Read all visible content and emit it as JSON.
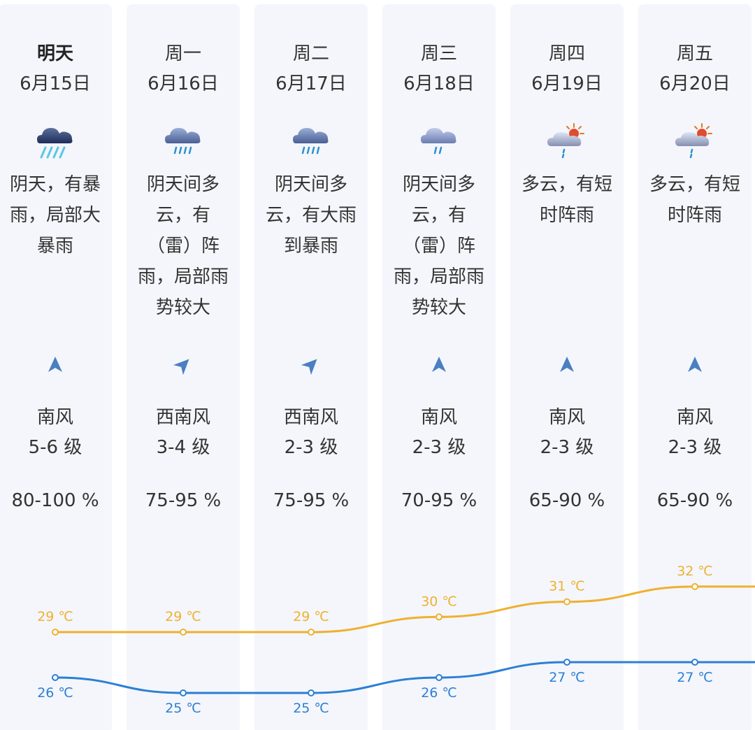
{
  "days": [
    {
      "day": "明天",
      "date": "6月15日",
      "weather_icon": "heavy-rain-icon",
      "desc": [
        "阴天，有暴",
        "雨，局部大",
        "暴雨"
      ],
      "wind_arrow": "wind-arrow-north-icon",
      "wind_dir": "南风",
      "wind_level": "5-6 级",
      "humidity": "80-100 %"
    },
    {
      "day": "周一",
      "date": "6月16日",
      "weather_icon": "rain-icon",
      "desc": [
        "阴天间多",
        "云，有",
        "（雷）阵",
        "雨，局部雨",
        "势较大"
      ],
      "wind_arrow": "wind-arrow-northeast-icon",
      "wind_dir": "西南风",
      "wind_level": "3-4 级",
      "humidity": "75-95 %"
    },
    {
      "day": "周二",
      "date": "6月17日",
      "weather_icon": "rain-icon",
      "desc": [
        "阴天间多",
        "云，有大雨",
        "到暴雨"
      ],
      "wind_arrow": "wind-arrow-northeast-icon",
      "wind_dir": "西南风",
      "wind_level": "2-3 级",
      "humidity": "75-95 %"
    },
    {
      "day": "周三",
      "date": "6月18日",
      "weather_icon": "light-rain-icon",
      "desc": [
        "阴天间多",
        "云，有",
        "（雷）阵",
        "雨，局部雨",
        "势较大"
      ],
      "wind_arrow": "wind-arrow-north-icon",
      "wind_dir": "南风",
      "wind_level": "2-3 级",
      "humidity": "70-95 %"
    },
    {
      "day": "周四",
      "date": "6月19日",
      "weather_icon": "sun-shower-icon",
      "desc": [
        "多云，有短",
        "时阵雨"
      ],
      "wind_arrow": "wind-arrow-north-icon",
      "wind_dir": "南风",
      "wind_level": "2-3 级",
      "humidity": "65-90 %"
    },
    {
      "day": "周五",
      "date": "6月20日",
      "weather_icon": "sun-shower-icon",
      "desc": [
        "多云，有短",
        "时阵雨"
      ],
      "wind_arrow": "wind-arrow-north-icon",
      "wind_dir": "南风",
      "wind_level": "2-3 级",
      "humidity": "65-90 %"
    }
  ],
  "chart_data": {
    "type": "line",
    "categories": [
      "6月15日",
      "6月16日",
      "6月17日",
      "6月18日",
      "6月19日",
      "6月20日"
    ],
    "series": [
      {
        "name": "high",
        "values": [
          29,
          29,
          29,
          30,
          31,
          32
        ],
        "labels": [
          "29 ℃",
          "29 ℃",
          "29 ℃",
          "30 ℃",
          "31 ℃",
          "32 ℃"
        ],
        "color": "#f0b030"
      },
      {
        "name": "low",
        "values": [
          26,
          25,
          25,
          26,
          27,
          27
        ],
        "labels": [
          "26 ℃",
          "25 ℃",
          "25 ℃",
          "26 ℃",
          "27 ℃",
          "27 ℃"
        ],
        "color": "#2b7fd6"
      }
    ]
  },
  "colors": {
    "high": "#f0b030",
    "low": "#2b7fd6",
    "card_bg": "#f4f6fb",
    "text": "#333333"
  }
}
